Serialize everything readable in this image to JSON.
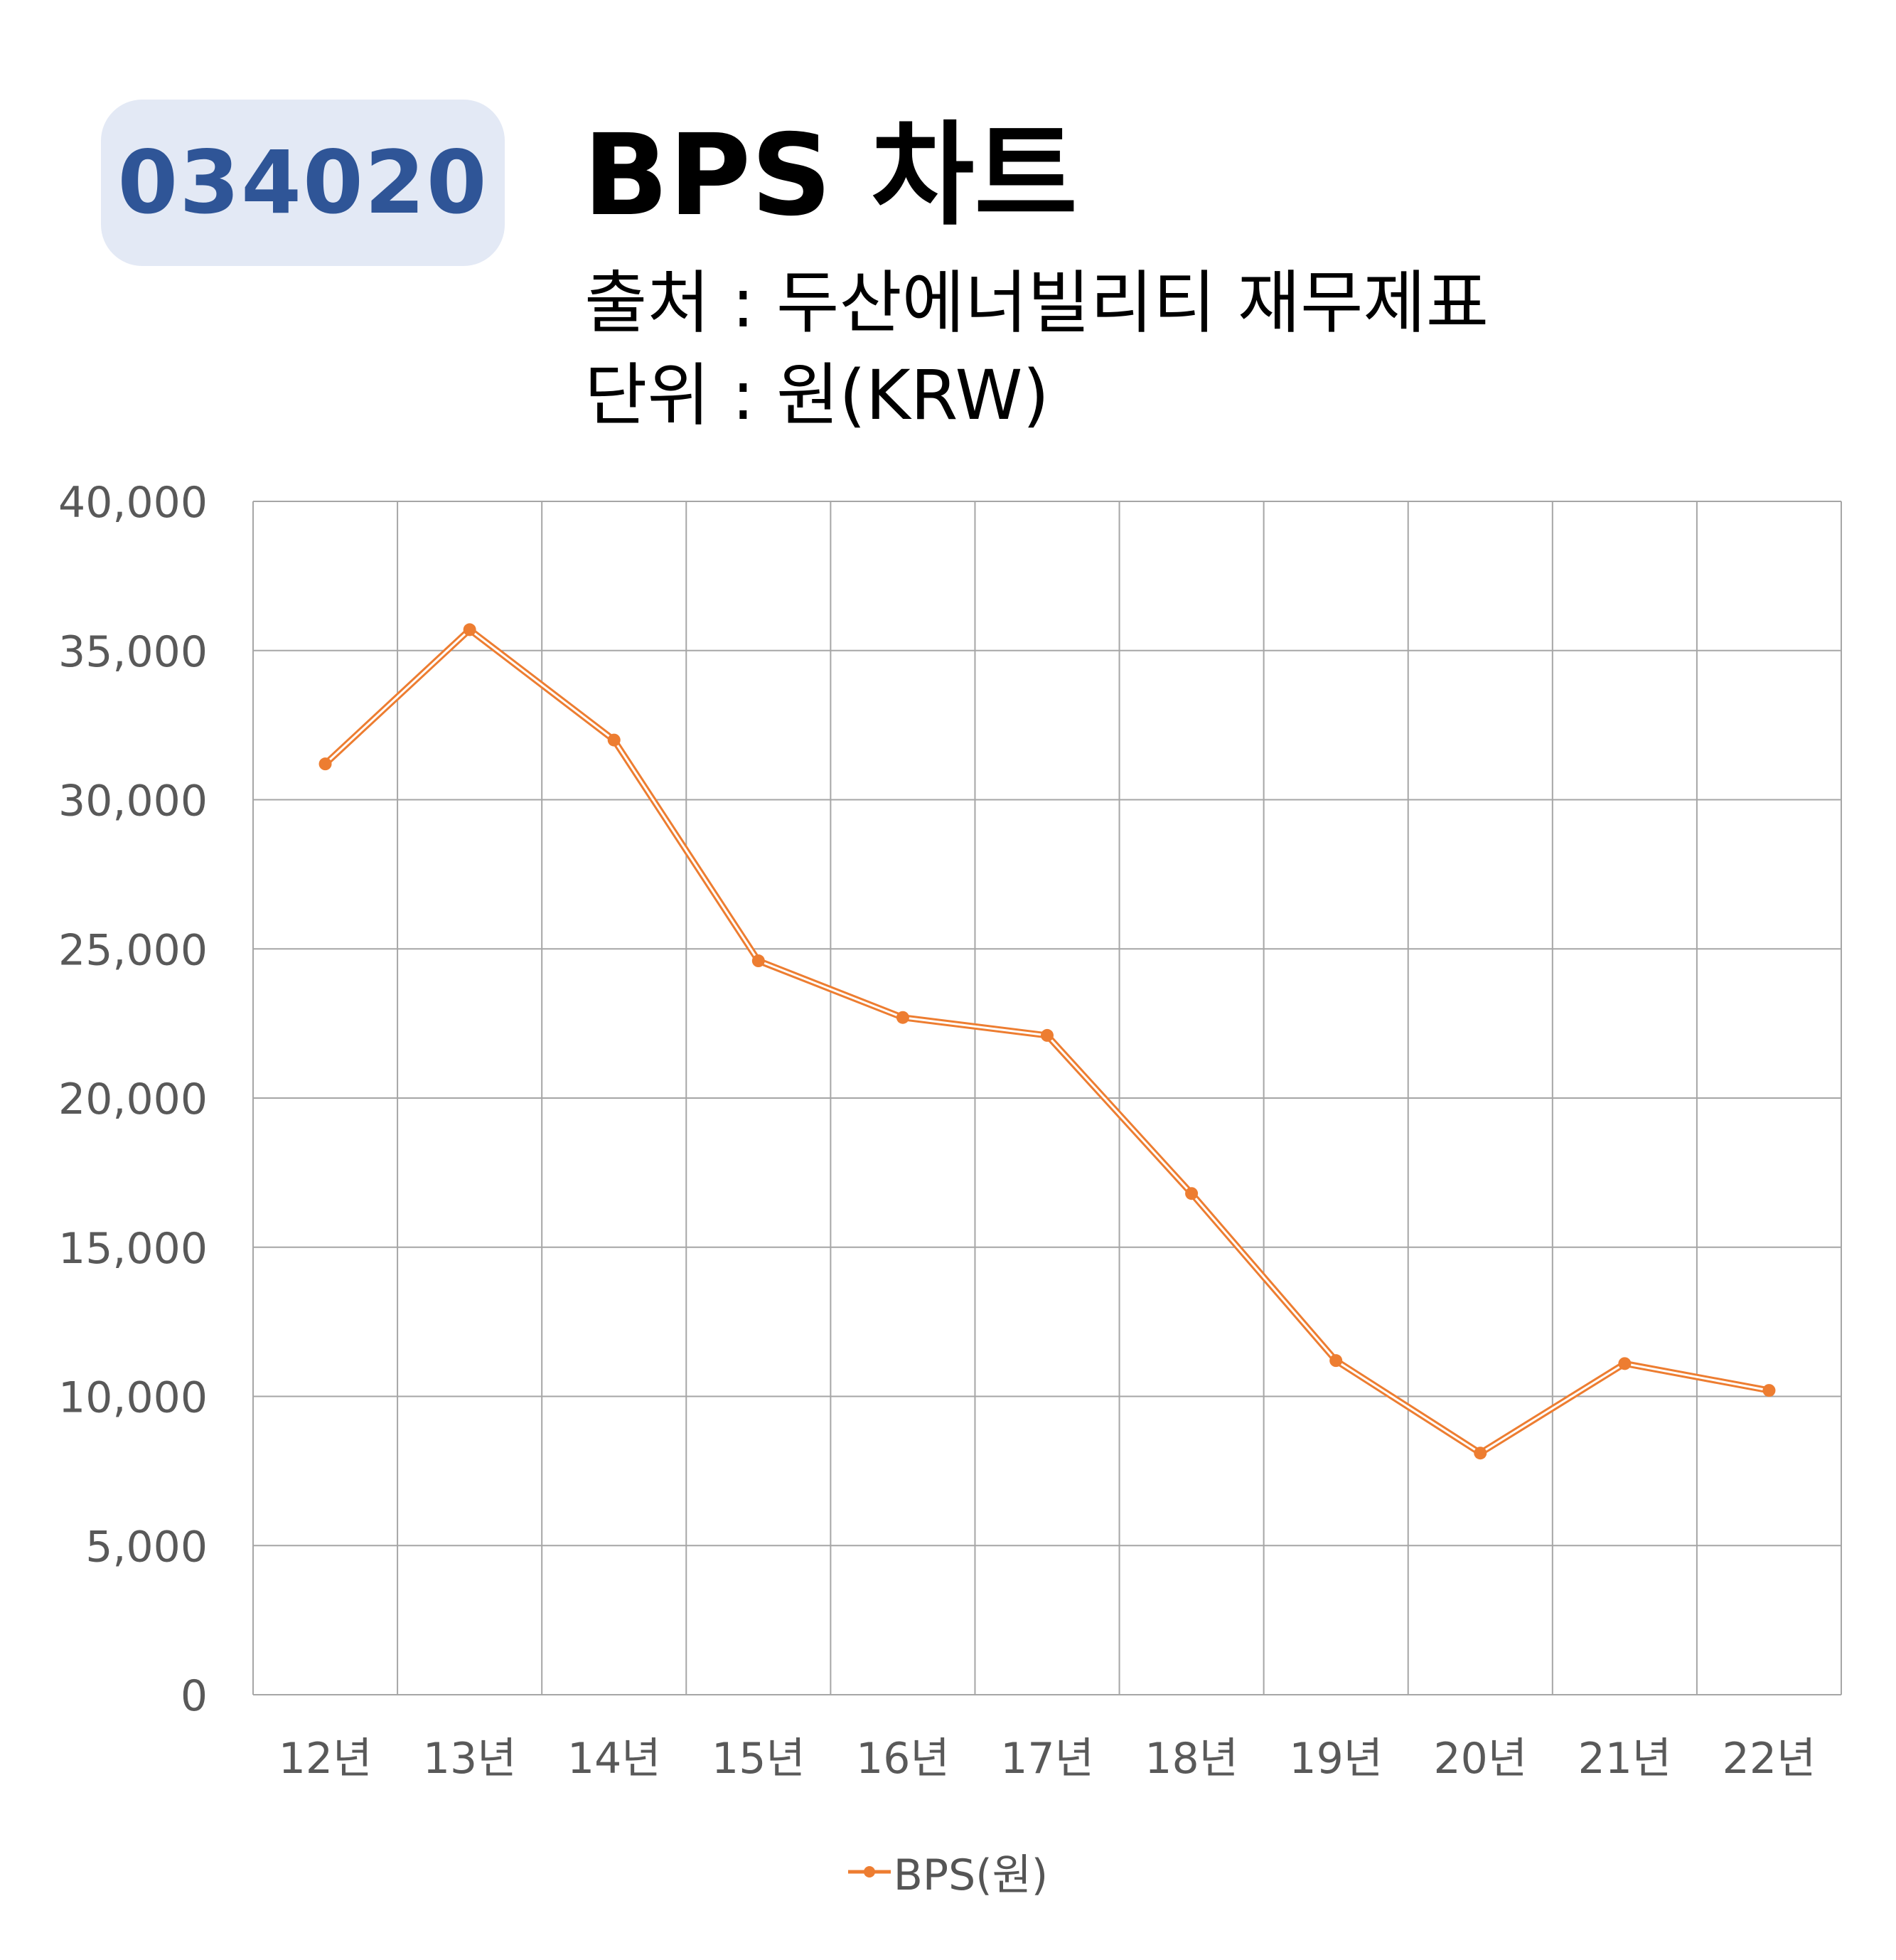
{
  "header": {
    "ticker": "034020",
    "title": "BPS 차트",
    "source": "출처 : 두산에너빌리티 재무제표",
    "unit": "단위 : 원(KRW)"
  },
  "colors": {
    "series": "#ed7d31",
    "badge_bg": "#e3e9f5",
    "badge_text": "#2f5597",
    "grid": "#a6a6a6",
    "tick_text": "#595959"
  },
  "chart_data": {
    "type": "line",
    "categories": [
      "12년",
      "13년",
      "14년",
      "15년",
      "16년",
      "17년",
      "18년",
      "19년",
      "20년",
      "21년",
      "22년"
    ],
    "series": [
      {
        "name": "BPS(원)",
        "values": [
          31200,
          35700,
          32000,
          24600,
          22700,
          22100,
          16800,
          11200,
          8100,
          11100,
          10200
        ]
      }
    ],
    "ylim": [
      0,
      40000
    ],
    "y_ticks": [
      "0",
      "5,000",
      "10,000",
      "15,000",
      "20,000",
      "25,000",
      "30,000",
      "35,000",
      "40,000"
    ],
    "y_tick_values": [
      0,
      5000,
      10000,
      15000,
      20000,
      25000,
      30000,
      35000,
      40000
    ],
    "grid": true,
    "legend_position": "bottom"
  }
}
